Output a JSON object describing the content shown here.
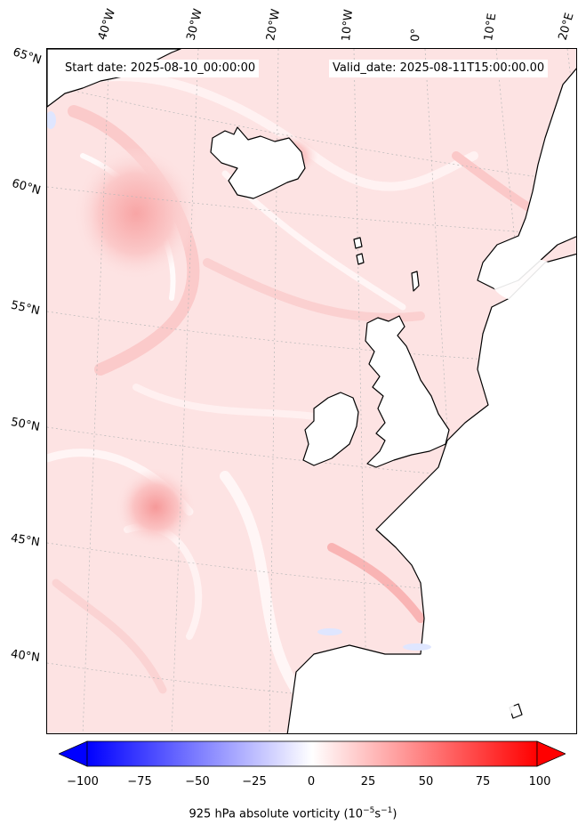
{
  "map": {
    "start_label": "Start date: 2025-08-10_00:00:00",
    "valid_label": "Valid_date: 2025-08-11T15:00:00.00",
    "lon_labels": [
      "40°W",
      "30°W",
      "20°W",
      "10°W",
      "0°",
      "10°E",
      "20°E"
    ],
    "lat_labels": [
      "65°N",
      "60°N",
      "55°N",
      "50°N",
      "45°N",
      "40°N"
    ],
    "colorbar": {
      "min": -100,
      "max": 100,
      "ticks": [
        "−100",
        "−75",
        "−50",
        "−25",
        "0",
        "25",
        "50",
        "75",
        "100"
      ],
      "label_prefix": "925 hPa absolute vorticity (10",
      "label_exp1": "−5",
      "label_mid": "s",
      "label_exp2": "−1",
      "label_suffix": ")",
      "low_color": "#0000ff",
      "mid_color": "#ffffff",
      "high_color": "#ff0000"
    },
    "coast_color": "#000000",
    "field_color": "#fde3e3"
  }
}
